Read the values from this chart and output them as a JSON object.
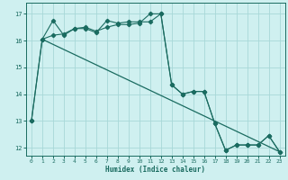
{
  "xlabel": "Humidex (Indice chaleur)",
  "bg_color": "#cff0f0",
  "grid_color": "#a8d8d8",
  "line_color": "#1a6b60",
  "xlim": [
    -0.5,
    23.5
  ],
  "ylim": [
    11.7,
    17.4
  ],
  "yticks": [
    12,
    13,
    14,
    15,
    16,
    17
  ],
  "xticks": [
    0,
    1,
    2,
    3,
    4,
    5,
    6,
    7,
    8,
    9,
    10,
    11,
    12,
    13,
    14,
    15,
    16,
    17,
    18,
    19,
    20,
    21,
    22,
    23
  ],
  "line1_x": [
    0,
    1,
    2,
    3,
    4,
    5,
    6,
    7,
    8,
    9,
    10,
    11,
    12,
    13,
    14,
    15,
    16,
    17,
    18,
    19,
    20,
    21,
    22,
    23
  ],
  "line1_y": [
    13.0,
    16.05,
    16.75,
    16.2,
    16.45,
    16.45,
    16.3,
    16.75,
    16.65,
    16.7,
    16.7,
    16.7,
    17.0,
    14.35,
    14.0,
    14.1,
    14.1,
    12.9,
    11.9,
    12.1,
    12.1,
    12.1,
    12.45,
    11.85
  ],
  "line2_x": [
    0,
    1,
    2,
    3,
    4,
    5,
    6,
    7,
    8,
    9,
    10,
    11,
    12,
    13,
    14,
    15,
    16,
    17,
    18,
    19,
    20,
    21,
    22,
    23
  ],
  "line2_y": [
    13.0,
    16.05,
    16.2,
    16.25,
    16.45,
    16.5,
    16.35,
    16.5,
    16.6,
    16.6,
    16.65,
    17.0,
    17.0,
    14.35,
    14.0,
    14.1,
    14.1,
    12.9,
    11.9,
    12.1,
    12.1,
    12.1,
    12.45,
    11.85
  ],
  "line3_x": [
    1,
    23
  ],
  "line3_y": [
    16.05,
    11.85
  ]
}
